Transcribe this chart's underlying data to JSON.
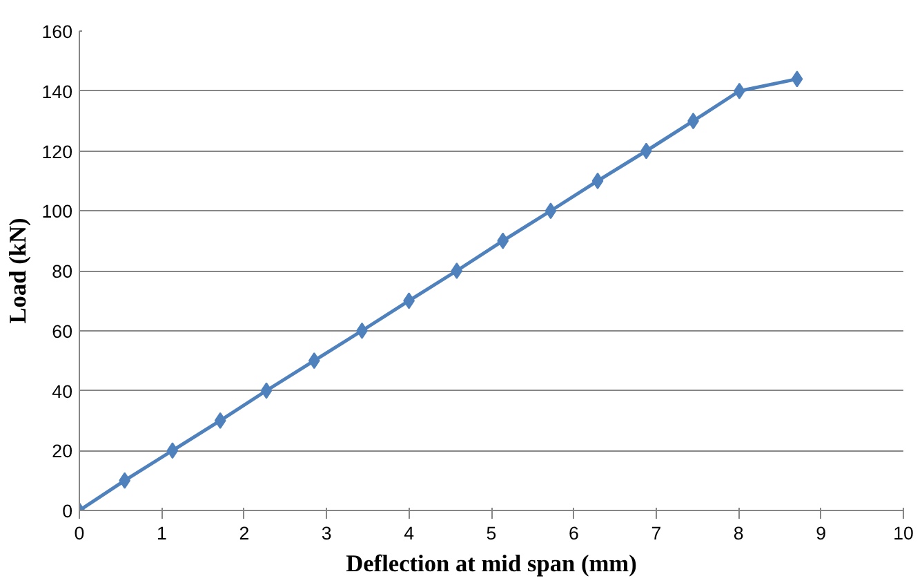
{
  "chart_data": {
    "type": "line",
    "xlabel": "Deflection at mid span (mm)",
    "ylabel": "Load (kN)",
    "x": [
      0,
      0.55,
      1.13,
      1.71,
      2.27,
      2.85,
      3.43,
      4.0,
      4.58,
      5.14,
      5.72,
      6.29,
      6.88,
      7.45,
      8.01,
      8.71
    ],
    "series": [
      {
        "color": "#4f81bd",
        "values": [
          0,
          10,
          20,
          30,
          40,
          50,
          60,
          70,
          80,
          90,
          100,
          110,
          120,
          130,
          140,
          144
        ]
      }
    ],
    "xlim": [
      0,
      10
    ],
    "xticks": [
      0,
      1,
      2,
      3,
      4,
      5,
      6,
      7,
      8,
      9,
      10
    ],
    "ylim": [
      0,
      160
    ],
    "yticks": [
      0,
      20,
      40,
      60,
      80,
      100,
      120,
      140,
      160
    ],
    "grid": "y",
    "marker": "diamond",
    "line_style": "solid"
  }
}
